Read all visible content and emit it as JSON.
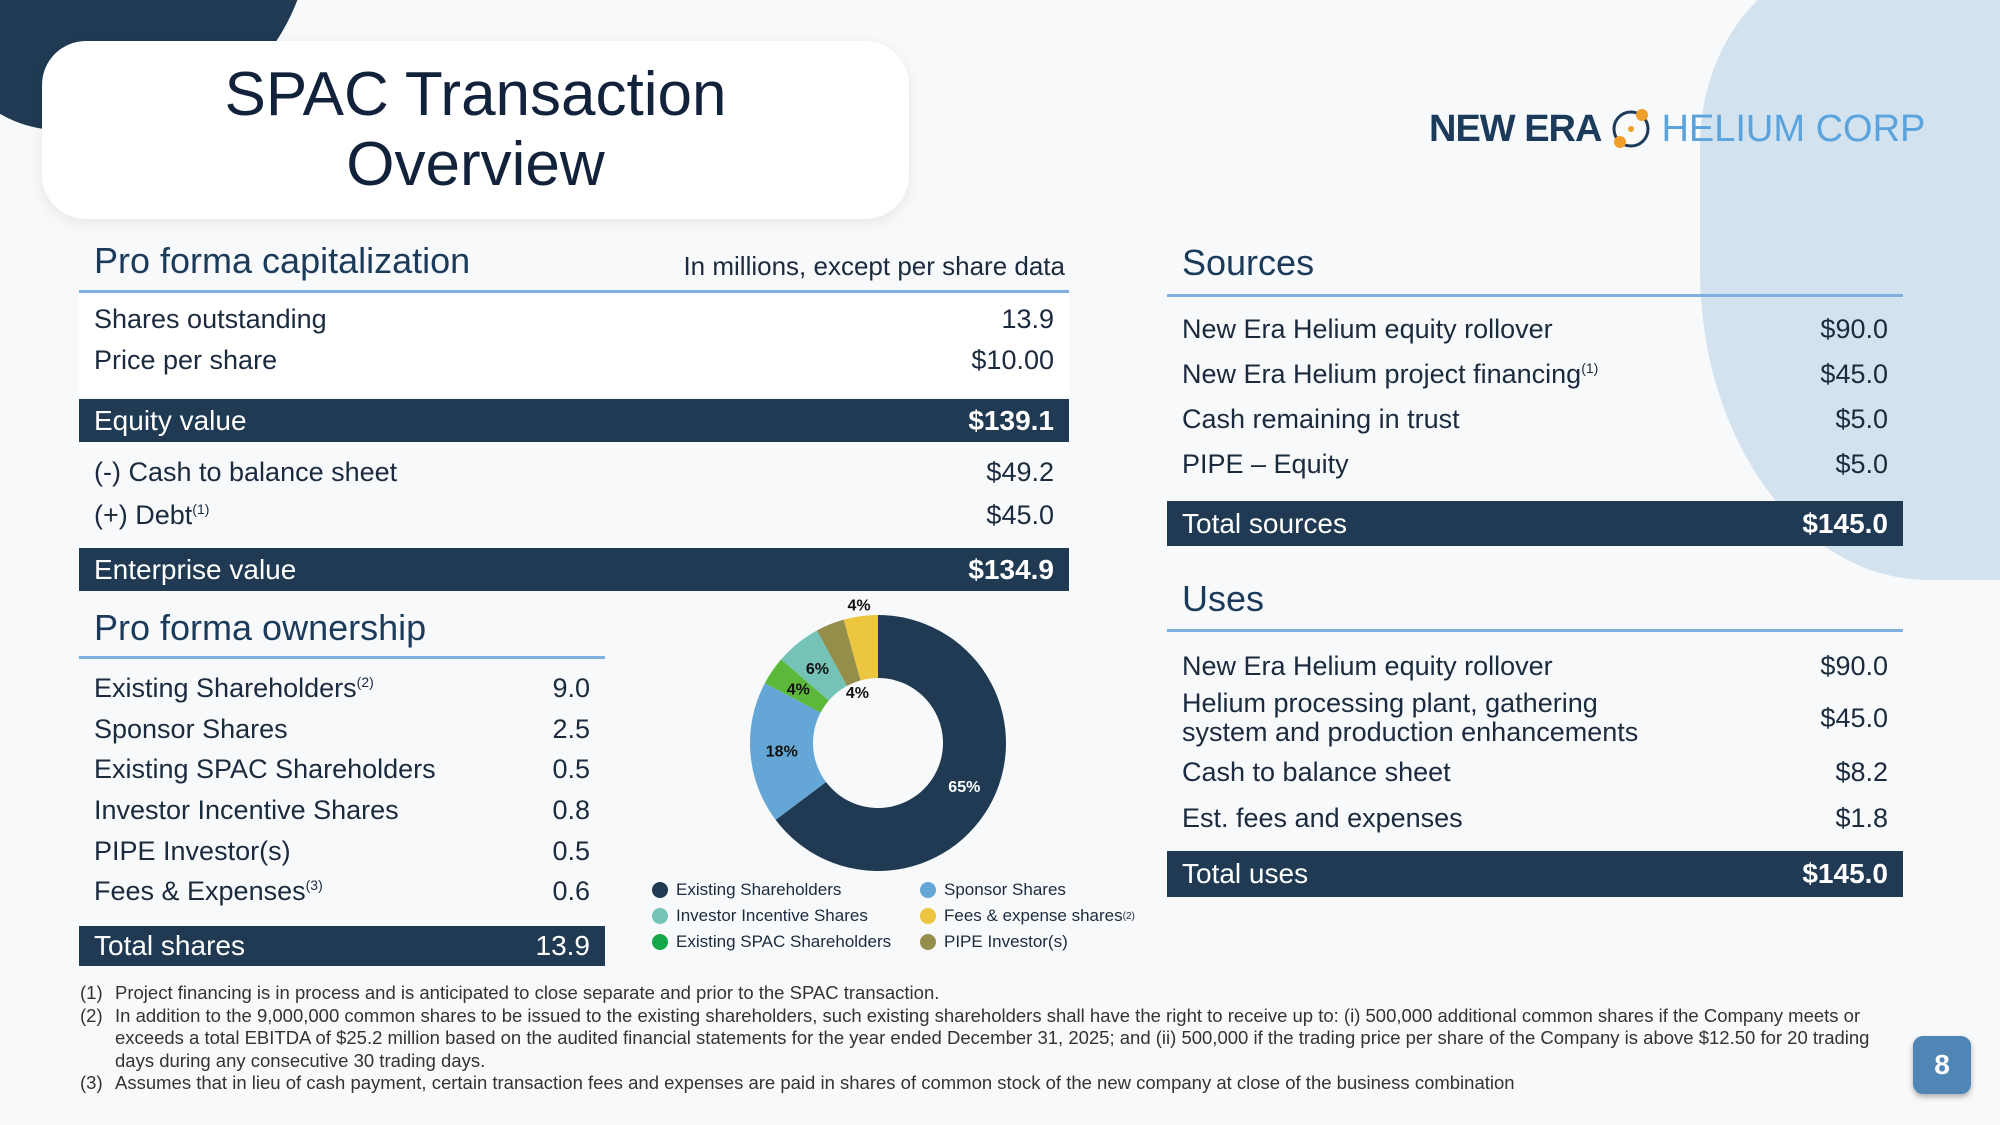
{
  "title": "SPAC Transaction\nOverview",
  "logo": {
    "part1": "NEW ERA",
    "part2": "HELIUM CORP"
  },
  "capitalization": {
    "heading": "Pro forma capitalization",
    "note": "In millions, except per share data",
    "rows1": [
      {
        "label": "Shares outstanding",
        "value": "13.9"
      },
      {
        "label": "Price per share",
        "value": "$10.00"
      }
    ],
    "equity": {
      "label": "Equity value",
      "value": "$139.1"
    },
    "rows2": [
      {
        "label": "(-) Cash to balance sheet",
        "value": "$49.2"
      },
      {
        "label": "(+) Debt",
        "sup": "(1)",
        "value": "$45.0"
      }
    ],
    "enterprise": {
      "label": "Enterprise value",
      "value": "$134.9"
    }
  },
  "ownership": {
    "heading": "Pro forma ownership",
    "rows": [
      {
        "label": "Existing Shareholders",
        "sup": "(2)",
        "value": "9.0"
      },
      {
        "label": "Sponsor Shares",
        "value": "2.5"
      },
      {
        "label": "Existing SPAC Shareholders",
        "value": "0.5"
      },
      {
        "label": "Investor Incentive Shares",
        "value": "0.8"
      },
      {
        "label": "PIPE Investor(s)",
        "value": "0.5"
      },
      {
        "label": "Fees & Expenses",
        "sup": "(3)",
        "value": "0.6"
      }
    ],
    "total": {
      "label": "Total shares",
      "value": "13.9"
    }
  },
  "chart_data": {
    "type": "pie",
    "donut": true,
    "slices": [
      {
        "name": "Existing Shareholders",
        "value": 9.0,
        "label": "65%",
        "color": "#1f3a52"
      },
      {
        "name": "Sponsor Shares",
        "value": 2.5,
        "label": "18%",
        "color": "#64a6d6"
      },
      {
        "name": "Existing SPAC Shareholders",
        "value": 0.5,
        "label": "4%",
        "color": "#5cb83a"
      },
      {
        "name": "Investor Incentive Shares",
        "value": 0.8,
        "label": "6%",
        "color": "#74c3b6"
      },
      {
        "name": "PIPE Investor(s)",
        "value": 0.5,
        "label": "4%",
        "color": "#948e4a"
      },
      {
        "name": "Fees & expense shares",
        "value": 0.6,
        "label": "4%",
        "color": "#ecc63e"
      }
    ],
    "legend": [
      {
        "name": "Existing Shareholders",
        "color": "#1f3a52"
      },
      {
        "name": "Sponsor Shares",
        "color": "#64a6d6"
      },
      {
        "name": "Investor Incentive Shares",
        "color": "#74c3b6"
      },
      {
        "name": "Fees & expense shares",
        "sup": "(2)",
        "color": "#ecc63e"
      },
      {
        "name": "Existing SPAC Shareholders",
        "color": "#14a84a"
      },
      {
        "name": "PIPE Investor(s)",
        "color": "#948e4a"
      }
    ]
  },
  "sources": {
    "heading": "Sources",
    "rows": [
      {
        "label": "New Era Helium equity rollover",
        "value": "$90.0"
      },
      {
        "label": "New Era Helium project financing",
        "sup": "(1)",
        "value": "$45.0"
      },
      {
        "label": "Cash remaining in trust",
        "value": "$5.0"
      },
      {
        "label": "PIPE – Equity",
        "value": "$5.0"
      }
    ],
    "total": {
      "label": "Total sources",
      "value": "$145.0"
    }
  },
  "uses": {
    "heading": "Uses",
    "rows": [
      {
        "label": "New Era Helium equity rollover",
        "value": "$90.0"
      },
      {
        "label": "Helium processing plant, gathering",
        "label2": "system and production enhancements",
        "value": "$45.0"
      },
      {
        "label": "Cash to balance sheet",
        "value": "$8.2"
      },
      {
        "label": "Est. fees and expenses",
        "value": "$1.8"
      }
    ],
    "total": {
      "label": "Total uses",
      "value": "$145.0"
    }
  },
  "footnotes": [
    {
      "n": "(1)",
      "text": "Project financing is in process and is anticipated to close separate and prior to the SPAC transaction."
    },
    {
      "n": "(2)",
      "text": "In addition to the 9,000,000 common shares to be issued to the existing shareholders, such existing shareholders shall have the right to receive up to: (i) 500,000 additional common shares if the Company meets or exceeds a total EBITDA of $25.2 million based on the audited financial statements for the year ended December 31, 2025; and (ii) 500,000 if the trading price per share of the Company is above $12.50 for 20 trading days during any consecutive 30 trading days."
    },
    {
      "n": "(3)",
      "text": "Assumes that in lieu of cash payment, certain transaction fees and expenses are paid in shares of common stock of the new company at close of the business combination"
    }
  ],
  "page_number": "8"
}
